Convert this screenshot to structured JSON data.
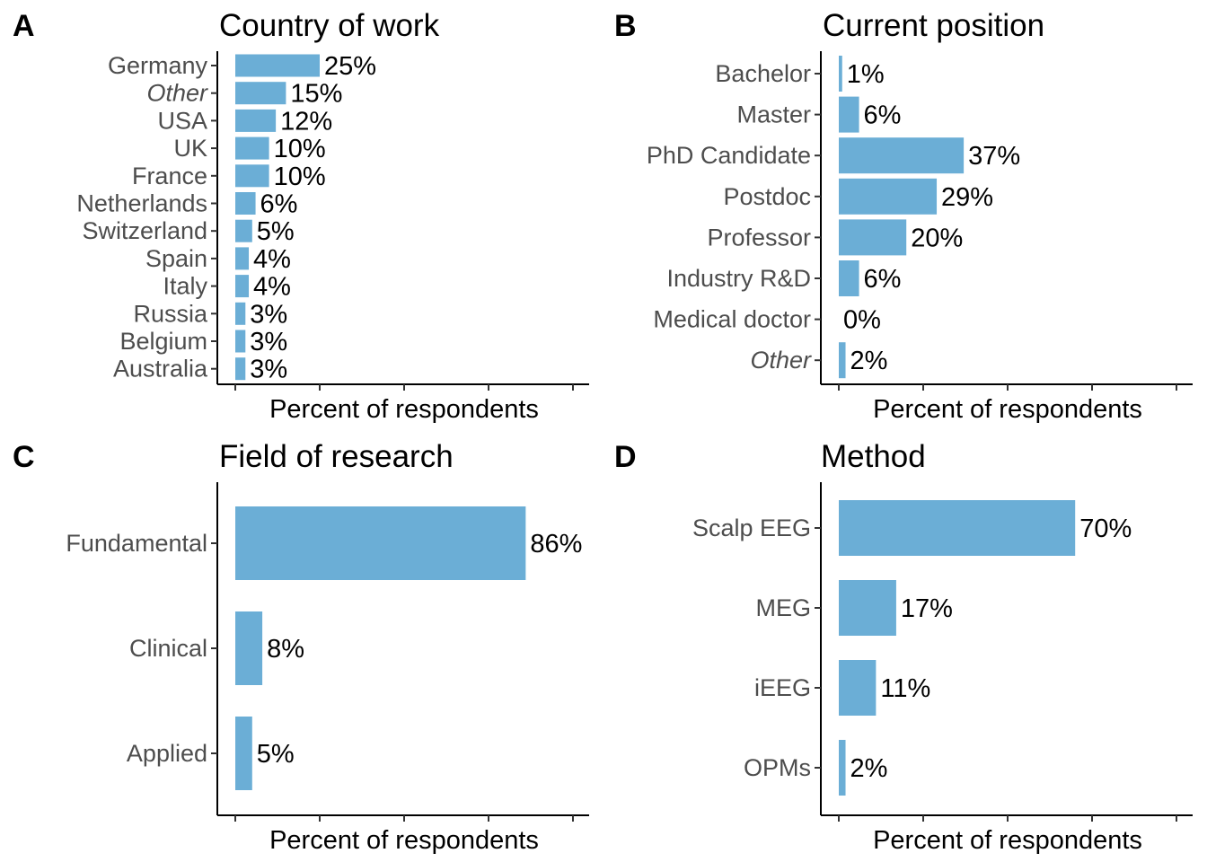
{
  "chart_data": [
    {
      "panel": "A",
      "type": "bar",
      "orientation": "horizontal",
      "title": "Country of work",
      "xlabel": "Percent of respondents",
      "categories": [
        "Germany",
        "Other",
        "USA",
        "UK",
        "France",
        "Netherlands",
        "Switzerland",
        "Spain",
        "Italy",
        "Russia",
        "Belgium",
        "Australia"
      ],
      "italic_categories": [
        "Other"
      ],
      "values": [
        25,
        15,
        12,
        10,
        10,
        6,
        5,
        4,
        4,
        3,
        3,
        3
      ],
      "value_labels": [
        "25%",
        "15%",
        "12%",
        "10%",
        "10%",
        "6%",
        "5%",
        "4%",
        "4%",
        "3%",
        "3%",
        "3%"
      ],
      "xlim": [
        0,
        100
      ],
      "bar_color": "#6baed6"
    },
    {
      "panel": "B",
      "type": "bar",
      "orientation": "horizontal",
      "title": "Current position",
      "xlabel": "Percent of respondents",
      "categories": [
        "Bachelor",
        "Master",
        "PhD Candidate",
        "Postdoc",
        "Professor",
        "Industry R&D",
        "Medical doctor",
        "Other"
      ],
      "italic_categories": [
        "Other"
      ],
      "values": [
        1,
        6,
        37,
        29,
        20,
        6,
        0,
        2
      ],
      "value_labels": [
        "1%",
        "6%",
        "37%",
        "29%",
        "20%",
        "6%",
        "0%",
        "2%"
      ],
      "xlim": [
        0,
        100
      ],
      "bar_color": "#6baed6"
    },
    {
      "panel": "C",
      "type": "bar",
      "orientation": "horizontal",
      "title": "Field of research",
      "xlabel": "Percent of respondents",
      "categories": [
        "Fundamental",
        "Clinical",
        "Applied"
      ],
      "italic_categories": [],
      "values": [
        86,
        8,
        5
      ],
      "value_labels": [
        "86%",
        "8%",
        "5%"
      ],
      "xlim": [
        0,
        100
      ],
      "bar_color": "#6baed6"
    },
    {
      "panel": "D",
      "type": "bar",
      "orientation": "horizontal",
      "title": "Method",
      "xlabel": "Percent of respondents",
      "categories": [
        "Scalp EEG",
        "MEG",
        "iEEG",
        "OPMs"
      ],
      "italic_categories": [],
      "values": [
        70,
        17,
        11,
        2
      ],
      "value_labels": [
        "70%",
        "17%",
        "11%",
        "2%"
      ],
      "xlim": [
        0,
        100
      ],
      "bar_color": "#6baed6"
    }
  ]
}
